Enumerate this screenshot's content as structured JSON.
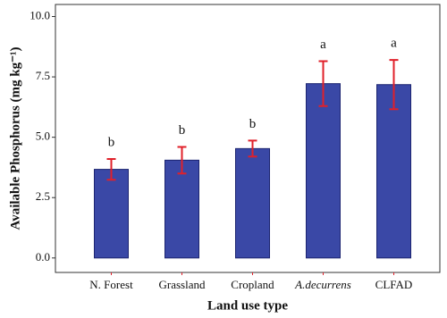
{
  "chart_data": {
    "type": "bar",
    "y_label": "Available Phosphorus (mg kg⁻¹)",
    "x_label": "Land use type",
    "categories": [
      "N. Forest",
      "Grassland",
      "Cropland",
      "A.decurrens",
      "CLFAD"
    ],
    "values": [
      3.67,
      4.05,
      4.53,
      7.22,
      7.18
    ],
    "errors": [
      0.43,
      0.55,
      0.33,
      0.93,
      1.02
    ],
    "annotations": [
      "b",
      "b",
      "b",
      "a",
      "a"
    ],
    "color": "#3a48a6",
    "error_color": "#e0202a",
    "ylim": [
      -0.6,
      10.5
    ],
    "yticks": [
      {
        "value": 0,
        "label": "0.0"
      },
      {
        "value": 2.5,
        "label": "2.5"
      },
      {
        "value": 5,
        "label": "5.0"
      },
      {
        "value": 7.5,
        "label": "7.5"
      },
      {
        "value": 10,
        "label": "10.0"
      }
    ]
  }
}
